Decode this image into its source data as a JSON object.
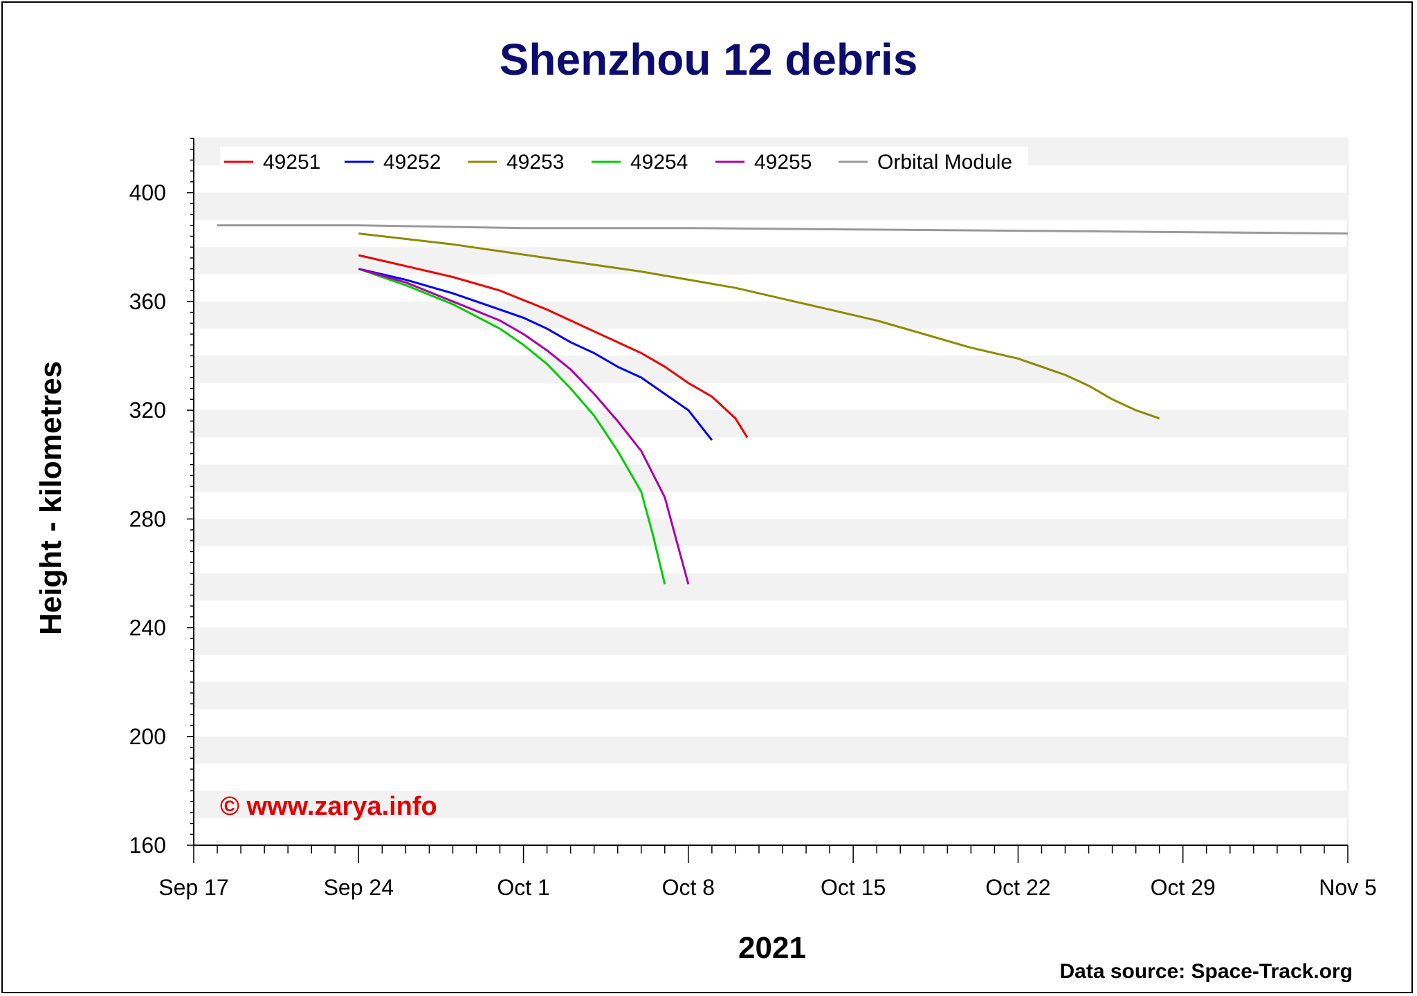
{
  "chart_data": {
    "type": "line",
    "title": "Shenzhou 12 debris",
    "xlabel": "2021",
    "ylabel": "Height - kilometres",
    "xlim": [
      "2021-09-17",
      "2021-11-05"
    ],
    "ylim": [
      160,
      420
    ],
    "x_ticks": [
      "Sep 17",
      "Sep 24",
      "Oct 1",
      "Oct 8",
      "Oct 15",
      "Oct 22",
      "Oct 29",
      "Nov 5"
    ],
    "y_ticks": [
      "400",
      "360",
      "320",
      "280",
      "240",
      "200",
      "160"
    ],
    "grid": "alternating horizontal bands",
    "legend_position": "top",
    "credit": "© www.zarya.info",
    "source": "Data source: Space-Track.org",
    "series": [
      {
        "name": "49251",
        "color": "#ee0000",
        "points": [
          [
            "2021-09-24",
            377
          ],
          [
            "2021-09-26",
            373
          ],
          [
            "2021-09-28",
            369
          ],
          [
            "2021-09-30",
            364
          ],
          [
            "2021-10-02",
            357
          ],
          [
            "2021-10-04",
            349
          ],
          [
            "2021-10-06",
            341
          ],
          [
            "2021-10-07",
            336
          ],
          [
            "2021-10-08",
            330
          ],
          [
            "2021-10-09",
            325
          ],
          [
            "2021-10-10",
            317
          ],
          [
            "2021-10-10.5",
            310
          ]
        ]
      },
      {
        "name": "49252",
        "color": "#0000ee",
        "points": [
          [
            "2021-09-24",
            372
          ],
          [
            "2021-09-26",
            368
          ],
          [
            "2021-09-28",
            363
          ],
          [
            "2021-09-30",
            357
          ],
          [
            "2021-10-01",
            354
          ],
          [
            "2021-10-02",
            350
          ],
          [
            "2021-10-03",
            345
          ],
          [
            "2021-10-04",
            341
          ],
          [
            "2021-10-05",
            336
          ],
          [
            "2021-10-06",
            332
          ],
          [
            "2021-10-07",
            326
          ],
          [
            "2021-10-08",
            320
          ],
          [
            "2021-10-09",
            309
          ]
        ]
      },
      {
        "name": "49253",
        "color": "#8b8b00",
        "points": [
          [
            "2021-09-24",
            385
          ],
          [
            "2021-09-28",
            381
          ],
          [
            "2021-10-02",
            376
          ],
          [
            "2021-10-06",
            371
          ],
          [
            "2021-10-08",
            368
          ],
          [
            "2021-10-10",
            365
          ],
          [
            "2021-10-12",
            361
          ],
          [
            "2021-10-14",
            357
          ],
          [
            "2021-10-16",
            353
          ],
          [
            "2021-10-18",
            348
          ],
          [
            "2021-10-20",
            343
          ],
          [
            "2021-10-22",
            339
          ],
          [
            "2021-10-24",
            333
          ],
          [
            "2021-10-25",
            329
          ],
          [
            "2021-10-26",
            324
          ],
          [
            "2021-10-27",
            320
          ],
          [
            "2021-10-28",
            317
          ]
        ]
      },
      {
        "name": "49254",
        "color": "#00cc00",
        "points": [
          [
            "2021-09-24",
            372
          ],
          [
            "2021-09-26",
            366
          ],
          [
            "2021-09-28",
            359
          ],
          [
            "2021-09-30",
            350
          ],
          [
            "2021-10-01",
            344
          ],
          [
            "2021-10-02",
            337
          ],
          [
            "2021-10-03",
            328
          ],
          [
            "2021-10-04",
            318
          ],
          [
            "2021-10-05",
            305
          ],
          [
            "2021-10-06",
            290
          ],
          [
            "2021-10-06.5",
            274
          ],
          [
            "2021-10-07",
            256
          ]
        ]
      },
      {
        "name": "49255",
        "color": "#aa00aa",
        "points": [
          [
            "2021-09-24",
            372
          ],
          [
            "2021-09-26",
            367
          ],
          [
            "2021-09-28",
            360
          ],
          [
            "2021-09-30",
            353
          ],
          [
            "2021-10-01",
            348
          ],
          [
            "2021-10-02",
            342
          ],
          [
            "2021-10-03",
            335
          ],
          [
            "2021-10-04",
            326
          ],
          [
            "2021-10-05",
            316
          ],
          [
            "2021-10-06",
            305
          ],
          [
            "2021-10-07",
            288
          ],
          [
            "2021-10-07.5",
            272
          ],
          [
            "2021-10-08",
            256
          ]
        ]
      },
      {
        "name": "Orbital Module",
        "color": "#999999",
        "points": [
          [
            "2021-09-18",
            388
          ],
          [
            "2021-09-24",
            388
          ],
          [
            "2021-10-01",
            387
          ],
          [
            "2021-10-08",
            387
          ],
          [
            "2021-10-15",
            386.5
          ],
          [
            "2021-10-22",
            386
          ],
          [
            "2021-10-29",
            385.5
          ],
          [
            "2021-11-05",
            385
          ]
        ]
      }
    ]
  }
}
